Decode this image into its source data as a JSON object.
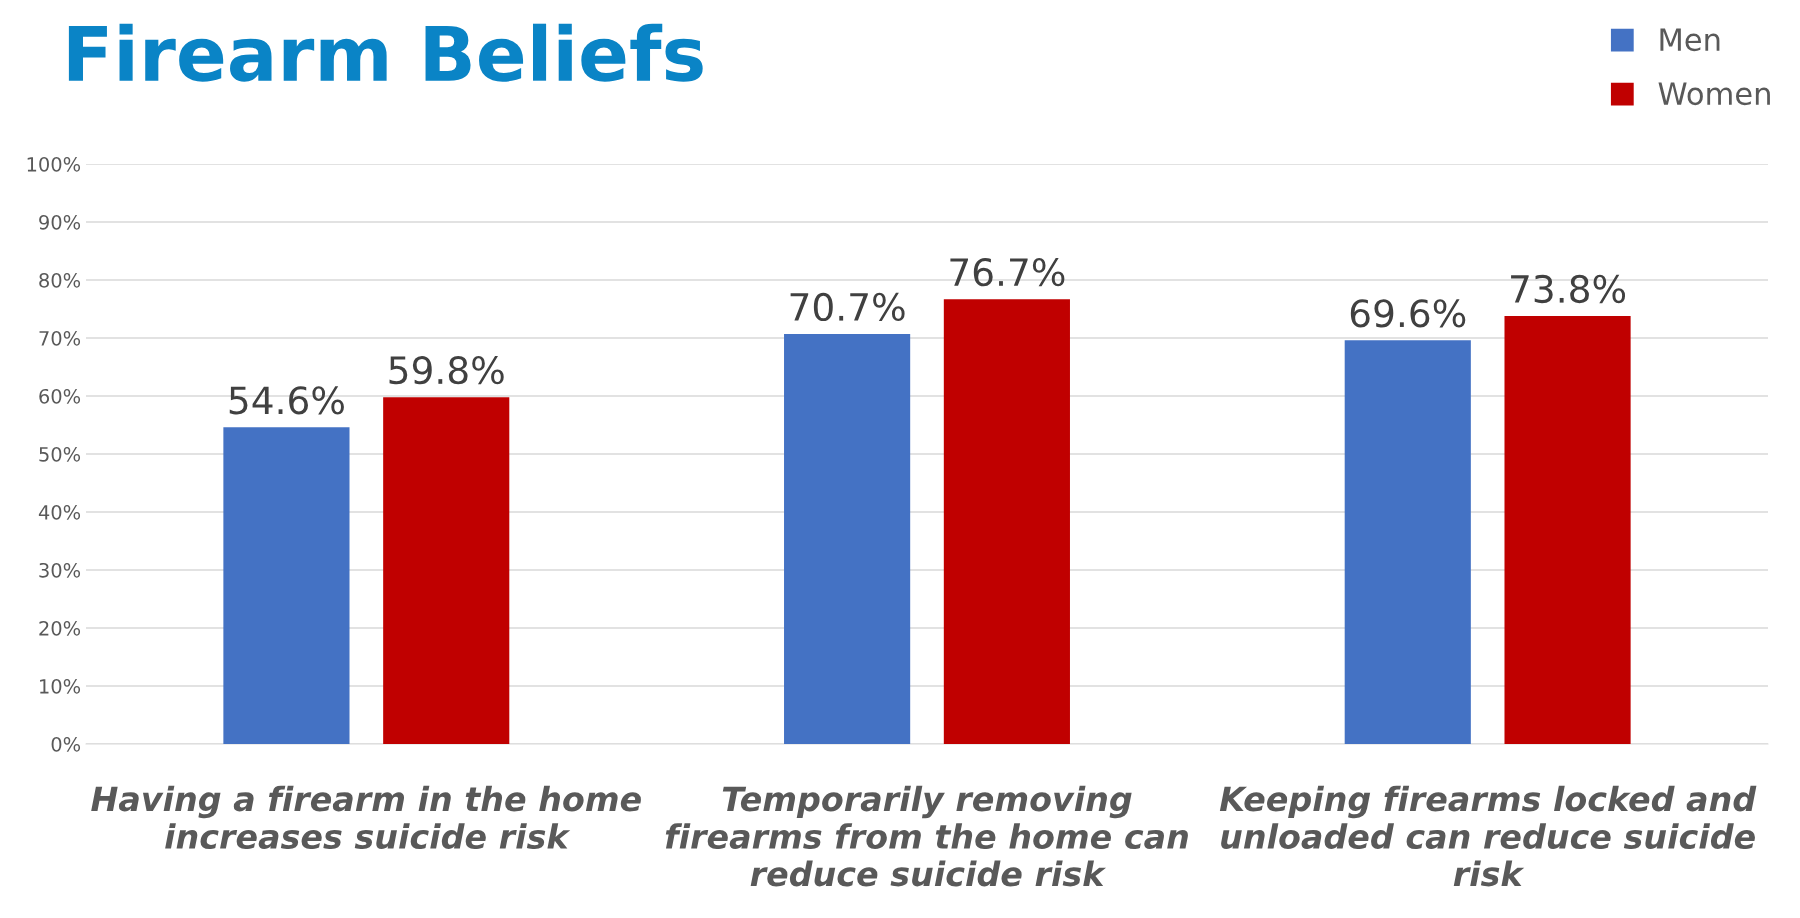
{
  "chart_data": {
    "type": "bar",
    "title": "Firearm Beliefs",
    "categories": [
      "Having a firearm in the home increases suicide risk",
      "Temporarily removing firearms from the home can reduce suicide risk",
      "Keeping firearms locked and unloaded can reduce suicide risk"
    ],
    "series": [
      {
        "name": "Men",
        "color": "#4472c4",
        "values": [
          54.6,
          70.7,
          69.6
        ],
        "value_labels": [
          "54.6%",
          "70.7%",
          "69.6%"
        ]
      },
      {
        "name": "Women",
        "color": "#c00000",
        "values": [
          59.8,
          76.7,
          73.8
        ],
        "value_labels": [
          "59.8%",
          "76.7%",
          "73.8%"
        ]
      }
    ],
    "ylim": [
      0,
      100
    ],
    "yticks": [
      {
        "value": 0,
        "label": "0%"
      },
      {
        "value": 10,
        "label": "10%"
      },
      {
        "value": 20,
        "label": "20%"
      },
      {
        "value": 30,
        "label": "30%"
      },
      {
        "value": 40,
        "label": "40%"
      },
      {
        "value": 50,
        "label": "50%"
      },
      {
        "value": 60,
        "label": "60%"
      },
      {
        "value": 70,
        "label": "70%"
      },
      {
        "value": 80,
        "label": "80%"
      },
      {
        "value": 90,
        "label": "90%"
      },
      {
        "value": 100,
        "label": "100%"
      }
    ],
    "grid": "y",
    "legend": "top right"
  }
}
